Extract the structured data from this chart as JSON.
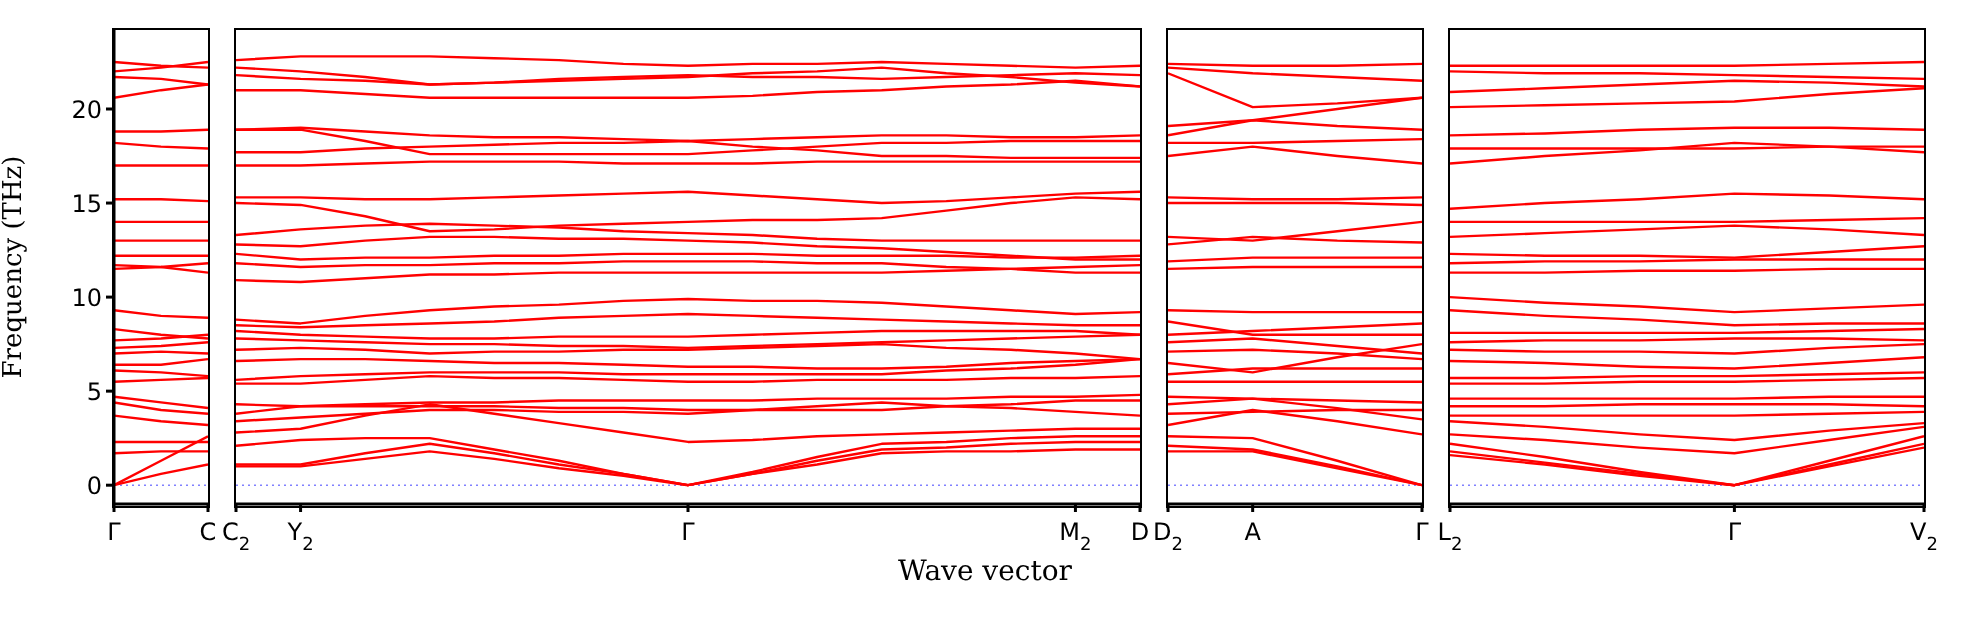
{
  "chart_data": [
    {
      "type": "line",
      "ylabel": "Frequency (THz)",
      "categories": [
        "Γ",
        null,
        "C"
      ],
      "ylim": [
        -1,
        24.2
      ],
      "yticks": [
        0,
        5,
        10,
        15,
        20
      ],
      "ref_lines": [
        {
          "axis": "y",
          "value": 0,
          "color": "#8080ff",
          "line_style": "dotted"
        }
      ],
      "series": [
        {
          "color": "#ff0000",
          "values": [
            0,
            0.6,
            1.1
          ]
        },
        {
          "color": "#ff0000",
          "values": [
            0,
            1.3,
            2.6
          ]
        },
        {
          "color": "#ff0000",
          "values": [
            1.7,
            1.8,
            1.8
          ]
        },
        {
          "color": "#ff0000",
          "values": [
            2.3,
            2.3,
            2.3
          ]
        },
        {
          "color": "#ff0000",
          "values": [
            3.7,
            3.4,
            3.2
          ]
        },
        {
          "color": "#ff0000",
          "values": [
            4.4,
            4.0,
            3.8
          ]
        },
        {
          "color": "#ff0000",
          "values": [
            4.7,
            4.4,
            4.1
          ]
        },
        {
          "color": "#ff0000",
          "values": [
            5.5,
            5.6,
            5.7
          ]
        },
        {
          "color": "#ff0000",
          "values": [
            6.1,
            6.0,
            5.8
          ]
        },
        {
          "color": "#ff0000",
          "values": [
            6.4,
            6.4,
            6.7
          ]
        },
        {
          "color": "#ff0000",
          "values": [
            7.0,
            7.1,
            7.0
          ]
        },
        {
          "color": "#ff0000",
          "values": [
            7.3,
            7.4,
            7.6
          ]
        },
        {
          "color": "#ff0000",
          "values": [
            7.7,
            7.8,
            8.0
          ]
        },
        {
          "color": "#ff0000",
          "values": [
            8.3,
            8.0,
            7.8
          ]
        },
        {
          "color": "#ff0000",
          "values": [
            9.3,
            9.0,
            8.9
          ]
        },
        {
          "color": "#ff0000",
          "values": [
            11.5,
            11.6,
            11.8
          ]
        },
        {
          "color": "#ff0000",
          "values": [
            11.7,
            11.6,
            11.3
          ]
        },
        {
          "color": "#ff0000",
          "values": [
            12.2,
            12.2,
            12.2
          ]
        },
        {
          "color": "#ff0000",
          "values": [
            13.0,
            13.0,
            13.0
          ]
        },
        {
          "color": "#ff0000",
          "values": [
            14.0,
            14.0,
            14.0
          ]
        },
        {
          "color": "#ff0000",
          "values": [
            15.2,
            15.2,
            15.1
          ]
        },
        {
          "color": "#ff0000",
          "values": [
            17.0,
            17.0,
            17.0
          ]
        },
        {
          "color": "#ff0000",
          "values": [
            18.2,
            18.0,
            17.9
          ]
        },
        {
          "color": "#ff0000",
          "values": [
            18.8,
            18.8,
            18.9
          ]
        },
        {
          "color": "#ff0000",
          "values": [
            20.6,
            21.0,
            21.3
          ]
        },
        {
          "color": "#ff0000",
          "values": [
            21.7,
            21.6,
            21.3
          ]
        },
        {
          "color": "#ff0000",
          "values": [
            22.0,
            22.2,
            22.5
          ]
        },
        {
          "color": "#ff0000",
          "values": [
            22.5,
            22.3,
            22.2
          ]
        }
      ]
    },
    {
      "type": "line",
      "xlabel": "Wave vector",
      "tick_labels": "x",
      "categories": [
        "C$_{2}$",
        "Y$_{2}$",
        null,
        null,
        null,
        null,
        null,
        "Γ",
        null,
        null,
        null,
        null,
        null,
        "M$_{2}$",
        "D"
      ],
      "ylim": [
        -1,
        24.2
      ],
      "yticks": [
        0,
        5,
        10,
        15,
        20
      ],
      "ref_lines": [
        {
          "axis": "y",
          "value": 0,
          "color": "#8080ff",
          "line_style": "dotted"
        }
      ],
      "series": [
        {
          "color": "#ff0000",
          "values": [
            1.0,
            1.0,
            1.4,
            1.8,
            1.4,
            0.9,
            0.5,
            0,
            0.6,
            1.3,
            1.9,
            2.0,
            2.2,
            2.3,
            2.3
          ]
        },
        {
          "color": "#ff0000",
          "values": [
            1.1,
            1.1,
            1.7,
            2.2,
            1.7,
            1.1,
            0.6,
            0,
            0.7,
            1.5,
            2.2,
            2.3,
            2.5,
            2.6,
            2.6
          ]
        },
        {
          "color": "#ff0000",
          "values": [
            2.1,
            2.4,
            2.5,
            2.5,
            1.9,
            1.3,
            0.6,
            0,
            0.6,
            1.1,
            1.7,
            1.8,
            1.8,
            1.9,
            1.9
          ]
        },
        {
          "color": "#ff0000",
          "values": [
            2.8,
            3.0,
            3.7,
            4.3,
            3.8,
            3.3,
            2.8,
            2.3,
            2.4,
            2.6,
            2.7,
            2.8,
            2.9,
            3.0,
            3.0
          ]
        },
        {
          "color": "#ff0000",
          "values": [
            3.4,
            3.6,
            3.8,
            4.0,
            4.0,
            3.9,
            3.9,
            3.8,
            4.0,
            4.2,
            4.4,
            4.2,
            4.1,
            3.9,
            3.7
          ]
        },
        {
          "color": "#ff0000",
          "values": [
            3.8,
            4.2,
            4.2,
            4.2,
            4.2,
            4.1,
            4.1,
            4.0,
            4.0,
            4.0,
            4.0,
            4.2,
            4.3,
            4.5,
            4.5
          ]
        },
        {
          "color": "#ff0000",
          "values": [
            4.3,
            4.2,
            4.3,
            4.4,
            4.4,
            4.5,
            4.5,
            4.5,
            4.5,
            4.6,
            4.6,
            4.6,
            4.7,
            4.7,
            4.8
          ]
        },
        {
          "color": "#ff0000",
          "values": [
            5.4,
            5.4,
            5.6,
            5.8,
            5.7,
            5.7,
            5.6,
            5.5,
            5.5,
            5.6,
            5.6,
            5.6,
            5.7,
            5.7,
            5.8
          ]
        },
        {
          "color": "#ff0000",
          "values": [
            5.6,
            5.8,
            5.9,
            6.0,
            6.0,
            6.0,
            5.9,
            5.9,
            5.9,
            5.9,
            5.9,
            6.1,
            6.2,
            6.4,
            6.7
          ]
        },
        {
          "color": "#ff0000",
          "values": [
            6.6,
            6.7,
            6.7,
            6.6,
            6.5,
            6.5,
            6.4,
            6.3,
            6.3,
            6.2,
            6.2,
            6.3,
            6.5,
            6.6,
            6.7
          ]
        },
        {
          "color": "#ff0000",
          "values": [
            7.2,
            7.3,
            7.2,
            7.0,
            7.1,
            7.1,
            7.2,
            7.2,
            7.3,
            7.4,
            7.5,
            7.3,
            7.2,
            7.0,
            6.7
          ]
        },
        {
          "color": "#ff0000",
          "values": [
            7.8,
            7.7,
            7.6,
            7.5,
            7.5,
            7.4,
            7.4,
            7.3,
            7.4,
            7.5,
            7.6,
            7.7,
            7.8,
            7.9,
            8.0
          ]
        },
        {
          "color": "#ff0000",
          "values": [
            8.2,
            8.0,
            7.9,
            7.8,
            7.8,
            7.9,
            7.9,
            7.9,
            8.0,
            8.1,
            8.2,
            8.2,
            8.2,
            8.2,
            8.0
          ]
        },
        {
          "color": "#ff0000",
          "values": [
            8.5,
            8.4,
            8.5,
            8.6,
            8.7,
            8.9,
            9.0,
            9.1,
            9.0,
            8.9,
            8.8,
            8.7,
            8.6,
            8.5,
            8.5
          ]
        },
        {
          "color": "#ff0000",
          "values": [
            8.8,
            8.6,
            9.0,
            9.3,
            9.5,
            9.6,
            9.8,
            9.9,
            9.8,
            9.8,
            9.7,
            9.5,
            9.3,
            9.1,
            9.2
          ]
        },
        {
          "color": "#ff0000",
          "values": [
            10.9,
            10.8,
            11.0,
            11.2,
            11.2,
            11.3,
            11.3,
            11.3,
            11.3,
            11.3,
            11.3,
            11.4,
            11.5,
            11.6,
            11.7
          ]
        },
        {
          "color": "#ff0000",
          "values": [
            11.8,
            11.6,
            11.7,
            11.7,
            11.8,
            11.8,
            11.9,
            11.9,
            11.9,
            11.8,
            11.8,
            11.6,
            11.5,
            11.3,
            11.3
          ]
        },
        {
          "color": "#ff0000",
          "values": [
            12.3,
            12.0,
            12.1,
            12.1,
            12.2,
            12.2,
            12.3,
            12.3,
            12.3,
            12.2,
            12.2,
            12.2,
            12.1,
            12.1,
            12.2
          ]
        },
        {
          "color": "#ff0000",
          "values": [
            12.8,
            12.7,
            13.0,
            13.2,
            13.2,
            13.1,
            13.1,
            13.0,
            12.9,
            12.7,
            12.6,
            12.4,
            12.2,
            12.0,
            12.0
          ]
        },
        {
          "color": "#ff0000",
          "values": [
            13.3,
            13.6,
            13.8,
            13.9,
            13.8,
            13.7,
            13.5,
            13.4,
            13.3,
            13.1,
            13.0,
            13.0,
            13.0,
            13.0,
            13.0
          ]
        },
        {
          "color": "#ff0000",
          "values": [
            15.0,
            14.9,
            14.3,
            13.5,
            13.6,
            13.8,
            13.9,
            14.0,
            14.1,
            14.1,
            14.2,
            14.6,
            15.0,
            15.3,
            15.2
          ]
        },
        {
          "color": "#ff0000",
          "values": [
            15.3,
            15.3,
            15.2,
            15.2,
            15.3,
            15.4,
            15.5,
            15.6,
            15.4,
            15.2,
            15.0,
            15.1,
            15.3,
            15.5,
            15.6
          ]
        },
        {
          "color": "#ff0000",
          "values": [
            17.0,
            17.0,
            17.1,
            17.2,
            17.2,
            17.2,
            17.1,
            17.1,
            17.1,
            17.2,
            17.2,
            17.2,
            17.2,
            17.2,
            17.2
          ]
        },
        {
          "color": "#ff0000",
          "values": [
            17.7,
            17.7,
            17.9,
            18.0,
            18.1,
            18.2,
            18.2,
            18.3,
            18.0,
            17.8,
            17.5,
            17.5,
            17.4,
            17.4,
            17.4
          ]
        },
        {
          "color": "#ff0000",
          "values": [
            18.9,
            18.9,
            18.3,
            17.6,
            17.6,
            17.6,
            17.6,
            17.6,
            17.8,
            18.0,
            18.2,
            18.2,
            18.3,
            18.3,
            18.3
          ]
        },
        {
          "color": "#ff0000",
          "values": [
            18.9,
            19.0,
            18.8,
            18.6,
            18.5,
            18.5,
            18.4,
            18.3,
            18.4,
            18.5,
            18.6,
            18.6,
            18.5,
            18.5,
            18.6
          ]
        },
        {
          "color": "#ff0000",
          "values": [
            21.0,
            21.0,
            20.8,
            20.6,
            20.6,
            20.6,
            20.6,
            20.6,
            20.7,
            20.9,
            21.0,
            21.2,
            21.3,
            21.5,
            21.2
          ]
        },
        {
          "color": "#ff0000",
          "values": [
            21.8,
            21.6,
            21.5,
            21.3,
            21.4,
            21.5,
            21.6,
            21.7,
            21.9,
            22.0,
            22.2,
            21.9,
            21.7,
            21.4,
            21.2
          ]
        },
        {
          "color": "#ff0000",
          "values": [
            22.2,
            22.0,
            21.7,
            21.3,
            21.4,
            21.6,
            21.7,
            21.8,
            21.7,
            21.7,
            21.6,
            21.7,
            21.8,
            21.9,
            21.8
          ]
        },
        {
          "color": "#ff0000",
          "values": [
            22.6,
            22.8,
            22.8,
            22.8,
            22.7,
            22.6,
            22.4,
            22.3,
            22.4,
            22.4,
            22.5,
            22.4,
            22.3,
            22.2,
            22.3
          ]
        }
      ]
    },
    {
      "type": "line",
      "tick_labels": "x",
      "categories": [
        "D$_{2}$",
        "A",
        null,
        "Γ"
      ],
      "ylim": [
        -1,
        24.2
      ],
      "yticks": [
        0,
        5,
        10,
        15,
        20
      ],
      "ref_lines": [
        {
          "axis": "y",
          "value": 0,
          "color": "#8080ff",
          "line_style": "dotted"
        }
      ],
      "series": [
        {
          "color": "#ff0000",
          "values": [
            1.8,
            1.8,
            0.9,
            0
          ]
        },
        {
          "color": "#ff0000",
          "values": [
            2.1,
            1.9,
            1.0,
            0
          ]
        },
        {
          "color": "#ff0000",
          "values": [
            2.6,
            2.5,
            1.3,
            0
          ]
        },
        {
          "color": "#ff0000",
          "values": [
            3.2,
            4.0,
            3.4,
            2.7
          ]
        },
        {
          "color": "#ff0000",
          "values": [
            3.8,
            3.9,
            4.0,
            4.0
          ]
        },
        {
          "color": "#ff0000",
          "values": [
            4.3,
            4.6,
            4.1,
            3.5
          ]
        },
        {
          "color": "#ff0000",
          "values": [
            4.7,
            4.6,
            4.5,
            4.4
          ]
        },
        {
          "color": "#ff0000",
          "values": [
            5.5,
            5.5,
            5.5,
            5.5
          ]
        },
        {
          "color": "#ff0000",
          "values": [
            5.9,
            6.2,
            6.2,
            6.2
          ]
        },
        {
          "color": "#ff0000",
          "values": [
            6.5,
            6.0,
            6.8,
            7.5
          ]
        },
        {
          "color": "#ff0000",
          "values": [
            7.1,
            7.2,
            7.0,
            6.7
          ]
        },
        {
          "color": "#ff0000",
          "values": [
            7.6,
            7.8,
            7.4,
            7.0
          ]
        },
        {
          "color": "#ff0000",
          "values": [
            8.0,
            8.2,
            8.4,
            8.6
          ]
        },
        {
          "color": "#ff0000",
          "values": [
            8.7,
            8.0,
            8.0,
            8.0
          ]
        },
        {
          "color": "#ff0000",
          "values": [
            9.3,
            9.2,
            9.2,
            9.2
          ]
        },
        {
          "color": "#ff0000",
          "values": [
            11.5,
            11.6,
            11.6,
            11.6
          ]
        },
        {
          "color": "#ff0000",
          "values": [
            11.9,
            12.1,
            12.1,
            12.1
          ]
        },
        {
          "color": "#ff0000",
          "values": [
            12.8,
            13.2,
            13.0,
            12.9
          ]
        },
        {
          "color": "#ff0000",
          "values": [
            13.2,
            13.0,
            13.5,
            14.0
          ]
        },
        {
          "color": "#ff0000",
          "values": [
            15.0,
            15.0,
            15.0,
            14.9
          ]
        },
        {
          "color": "#ff0000",
          "values": [
            15.3,
            15.2,
            15.2,
            15.3
          ]
        },
        {
          "color": "#ff0000",
          "values": [
            17.5,
            18.0,
            17.5,
            17.1
          ]
        },
        {
          "color": "#ff0000",
          "values": [
            18.2,
            18.2,
            18.3,
            18.4
          ]
        },
        {
          "color": "#ff0000",
          "values": [
            18.6,
            19.4,
            19.1,
            18.9
          ]
        },
        {
          "color": "#ff0000",
          "values": [
            19.1,
            19.4,
            20.0,
            20.6
          ]
        },
        {
          "color": "#ff0000",
          "values": [
            21.9,
            20.1,
            20.3,
            20.6
          ]
        },
        {
          "color": "#ff0000",
          "values": [
            22.2,
            21.9,
            21.7,
            21.5
          ]
        },
        {
          "color": "#ff0000",
          "values": [
            22.4,
            22.3,
            22.3,
            22.4
          ]
        }
      ]
    },
    {
      "type": "line",
      "tick_labels": "x",
      "categories": [
        "L$_{2}$",
        null,
        null,
        "Γ",
        null,
        "V$_{2}$"
      ],
      "ylim": [
        -1,
        24.2
      ],
      "yticks": [
        0,
        5,
        10,
        15,
        20
      ],
      "ref_lines": [
        {
          "axis": "y",
          "value": 0,
          "color": "#8080ff",
          "line_style": "dotted"
        }
      ],
      "series": [
        {
          "color": "#ff0000",
          "values": [
            1.6,
            1.1,
            0.5,
            0,
            1.0,
            2.0
          ]
        },
        {
          "color": "#ff0000",
          "values": [
            1.8,
            1.2,
            0.6,
            0,
            1.1,
            2.2
          ]
        },
        {
          "color": "#ff0000",
          "values": [
            2.2,
            1.5,
            0.7,
            0,
            1.3,
            2.6
          ]
        },
        {
          "color": "#ff0000",
          "values": [
            2.7,
            2.4,
            2.0,
            1.7,
            2.4,
            3.1
          ]
        },
        {
          "color": "#ff0000",
          "values": [
            3.4,
            3.1,
            2.7,
            2.4,
            2.9,
            3.3
          ]
        },
        {
          "color": "#ff0000",
          "values": [
            3.7,
            3.7,
            3.7,
            3.7,
            3.8,
            3.9
          ]
        },
        {
          "color": "#ff0000",
          "values": [
            4.2,
            4.2,
            4.3,
            4.3,
            4.3,
            4.2
          ]
        },
        {
          "color": "#ff0000",
          "values": [
            4.6,
            4.6,
            4.6,
            4.6,
            4.7,
            4.7
          ]
        },
        {
          "color": "#ff0000",
          "values": [
            5.4,
            5.4,
            5.5,
            5.5,
            5.6,
            5.7
          ]
        },
        {
          "color": "#ff0000",
          "values": [
            5.7,
            5.7,
            5.8,
            5.8,
            5.9,
            6.0
          ]
        },
        {
          "color": "#ff0000",
          "values": [
            6.6,
            6.5,
            6.3,
            6.2,
            6.5,
            6.8
          ]
        },
        {
          "color": "#ff0000",
          "values": [
            7.2,
            7.1,
            7.1,
            7.0,
            7.3,
            7.5
          ]
        },
        {
          "color": "#ff0000",
          "values": [
            7.6,
            7.7,
            7.7,
            7.8,
            7.8,
            7.7
          ]
        },
        {
          "color": "#ff0000",
          "values": [
            8.1,
            8.1,
            8.1,
            8.1,
            8.2,
            8.3
          ]
        },
        {
          "color": "#ff0000",
          "values": [
            9.3,
            9.0,
            8.8,
            8.5,
            8.6,
            8.6
          ]
        },
        {
          "color": "#ff0000",
          "values": [
            10.0,
            9.7,
            9.5,
            9.2,
            9.4,
            9.6
          ]
        },
        {
          "color": "#ff0000",
          "values": [
            11.3,
            11.3,
            11.4,
            11.4,
            11.5,
            11.5
          ]
        },
        {
          "color": "#ff0000",
          "values": [
            11.8,
            11.9,
            11.9,
            12.0,
            12.0,
            12.0
          ]
        },
        {
          "color": "#ff0000",
          "values": [
            12.3,
            12.2,
            12.2,
            12.1,
            12.4,
            12.7
          ]
        },
        {
          "color": "#ff0000",
          "values": [
            13.2,
            13.4,
            13.6,
            13.8,
            13.6,
            13.3
          ]
        },
        {
          "color": "#ff0000",
          "values": [
            14.0,
            14.0,
            14.0,
            14.0,
            14.1,
            14.2
          ]
        },
        {
          "color": "#ff0000",
          "values": [
            14.7,
            15.0,
            15.2,
            15.5,
            15.4,
            15.2
          ]
        },
        {
          "color": "#ff0000",
          "values": [
            17.1,
            17.5,
            17.8,
            18.2,
            18.0,
            17.7
          ]
        },
        {
          "color": "#ff0000",
          "values": [
            17.9,
            17.9,
            17.9,
            17.9,
            18.0,
            18.0
          ]
        },
        {
          "color": "#ff0000",
          "values": [
            18.6,
            18.7,
            18.9,
            19.0,
            19.0,
            18.9
          ]
        },
        {
          "color": "#ff0000",
          "values": [
            20.1,
            20.2,
            20.3,
            20.4,
            20.8,
            21.1
          ]
        },
        {
          "color": "#ff0000",
          "values": [
            20.9,
            21.1,
            21.3,
            21.5,
            21.4,
            21.2
          ]
        },
        {
          "color": "#ff0000",
          "values": [
            22.0,
            21.9,
            21.9,
            21.8,
            21.7,
            21.6
          ]
        },
        {
          "color": "#ff0000",
          "values": [
            22.3,
            22.3,
            22.3,
            22.3,
            22.4,
            22.5
          ]
        }
      ]
    }
  ]
}
